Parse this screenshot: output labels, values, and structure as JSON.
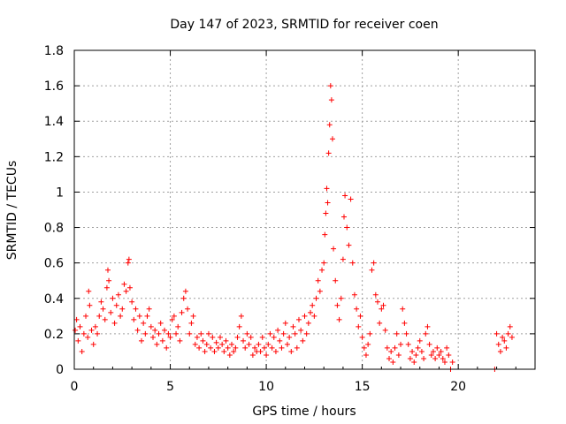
{
  "colors": {
    "series": "#ff0000",
    "background": "#ffffff",
    "grid": "#a0a0a0",
    "axis": "#000000"
  },
  "chart_data": {
    "type": "scatter",
    "title": "Day 147 of 2023, SRMTID for receiver coen",
    "xlabel": "GPS time / hours",
    "ylabel": "SRMTID / TECUs",
    "xlim": [
      0,
      24
    ],
    "ylim": [
      0,
      1.8
    ],
    "xticks": [
      0,
      5,
      10,
      15,
      20
    ],
    "yticks": [
      0,
      0.2,
      0.4,
      0.6,
      0.8,
      1,
      1.2,
      1.4,
      1.6,
      1.8
    ],
    "xtick_labels": [
      "0",
      "5",
      "10",
      "15",
      "20"
    ],
    "ytick_labels": [
      "0",
      "0.2",
      "0.4",
      "0.6",
      "0.8",
      "1",
      "1.2",
      "1.4",
      "1.6",
      "1.8"
    ],
    "grid": true,
    "marker": "+",
    "series": [
      {
        "name": "SRMTID",
        "points": [
          [
            0.05,
            0.22
          ],
          [
            0.12,
            0.28
          ],
          [
            0.2,
            0.16
          ],
          [
            0.3,
            0.24
          ],
          [
            0.4,
            0.1
          ],
          [
            0.5,
            0.2
          ],
          [
            0.6,
            0.3
          ],
          [
            0.7,
            0.18
          ],
          [
            0.75,
            0.44
          ],
          [
            0.8,
            0.36
          ],
          [
            0.9,
            0.22
          ],
          [
            1.0,
            0.14
          ],
          [
            1.1,
            0.24
          ],
          [
            1.2,
            0.2
          ],
          [
            1.3,
            0.3
          ],
          [
            1.4,
            0.38
          ],
          [
            1.5,
            0.34
          ],
          [
            1.6,
            0.28
          ],
          [
            1.7,
            0.46
          ],
          [
            1.75,
            0.56
          ],
          [
            1.8,
            0.5
          ],
          [
            1.9,
            0.32
          ],
          [
            2.0,
            0.4
          ],
          [
            2.1,
            0.26
          ],
          [
            2.2,
            0.36
          ],
          [
            2.3,
            0.42
          ],
          [
            2.4,
            0.3
          ],
          [
            2.5,
            0.34
          ],
          [
            2.6,
            0.48
          ],
          [
            2.7,
            0.44
          ],
          [
            2.8,
            0.6
          ],
          [
            2.85,
            0.62
          ],
          [
            2.9,
            0.46
          ],
          [
            3.0,
            0.38
          ],
          [
            3.1,
            0.28
          ],
          [
            3.2,
            0.34
          ],
          [
            3.3,
            0.22
          ],
          [
            3.4,
            0.3
          ],
          [
            3.5,
            0.16
          ],
          [
            3.6,
            0.26
          ],
          [
            3.7,
            0.2
          ],
          [
            3.8,
            0.3
          ],
          [
            3.9,
            0.34
          ],
          [
            4.0,
            0.24
          ],
          [
            4.1,
            0.18
          ],
          [
            4.2,
            0.22
          ],
          [
            4.3,
            0.14
          ],
          [
            4.4,
            0.2
          ],
          [
            4.5,
            0.26
          ],
          [
            4.6,
            0.16
          ],
          [
            4.7,
            0.22
          ],
          [
            4.8,
            0.12
          ],
          [
            4.9,
            0.2
          ],
          [
            5.0,
            0.18
          ],
          [
            5.1,
            0.28
          ],
          [
            5.2,
            0.3
          ],
          [
            5.3,
            0.2
          ],
          [
            5.4,
            0.24
          ],
          [
            5.5,
            0.16
          ],
          [
            5.6,
            0.32
          ],
          [
            5.7,
            0.4
          ],
          [
            5.8,
            0.44
          ],
          [
            5.9,
            0.34
          ],
          [
            6.0,
            0.2
          ],
          [
            6.1,
            0.26
          ],
          [
            6.2,
            0.3
          ],
          [
            6.3,
            0.14
          ],
          [
            6.4,
            0.18
          ],
          [
            6.5,
            0.12
          ],
          [
            6.6,
            0.2
          ],
          [
            6.7,
            0.16
          ],
          [
            6.8,
            0.1
          ],
          [
            6.9,
            0.14
          ],
          [
            7.0,
            0.2
          ],
          [
            7.1,
            0.12
          ],
          [
            7.2,
            0.18
          ],
          [
            7.3,
            0.1
          ],
          [
            7.4,
            0.15
          ],
          [
            7.5,
            0.12
          ],
          [
            7.6,
            0.18
          ],
          [
            7.7,
            0.14
          ],
          [
            7.8,
            0.1
          ],
          [
            7.9,
            0.16
          ],
          [
            8.0,
            0.12
          ],
          [
            8.1,
            0.08
          ],
          [
            8.2,
            0.14
          ],
          [
            8.3,
            0.1
          ],
          [
            8.4,
            0.12
          ],
          [
            8.5,
            0.18
          ],
          [
            8.6,
            0.24
          ],
          [
            8.7,
            0.3
          ],
          [
            8.8,
            0.16
          ],
          [
            8.9,
            0.12
          ],
          [
            9.0,
            0.2
          ],
          [
            9.1,
            0.14
          ],
          [
            9.2,
            0.18
          ],
          [
            9.3,
            0.08
          ],
          [
            9.4,
            0.12
          ],
          [
            9.5,
            0.1
          ],
          [
            9.6,
            0.14
          ],
          [
            9.7,
            0.1
          ],
          [
            9.8,
            0.18
          ],
          [
            9.9,
            0.12
          ],
          [
            10.0,
            0.08
          ],
          [
            10.1,
            0.14
          ],
          [
            10.2,
            0.2
          ],
          [
            10.3,
            0.12
          ],
          [
            10.4,
            0.18
          ],
          [
            10.5,
            0.1
          ],
          [
            10.6,
            0.22
          ],
          [
            10.7,
            0.16
          ],
          [
            10.8,
            0.12
          ],
          [
            10.9,
            0.2
          ],
          [
            11.0,
            0.26
          ],
          [
            11.1,
            0.14
          ],
          [
            11.2,
            0.18
          ],
          [
            11.3,
            0.1
          ],
          [
            11.4,
            0.24
          ],
          [
            11.5,
            0.2
          ],
          [
            11.6,
            0.12
          ],
          [
            11.7,
            0.28
          ],
          [
            11.8,
            0.22
          ],
          [
            11.9,
            0.16
          ],
          [
            12.0,
            0.3
          ],
          [
            12.1,
            0.2
          ],
          [
            12.2,
            0.26
          ],
          [
            12.3,
            0.32
          ],
          [
            12.4,
            0.36
          ],
          [
            12.5,
            0.3
          ],
          [
            12.6,
            0.4
          ],
          [
            12.7,
            0.5
          ],
          [
            12.8,
            0.44
          ],
          [
            12.9,
            0.56
          ],
          [
            13.0,
            0.6
          ],
          [
            13.05,
            0.76
          ],
          [
            13.1,
            0.88
          ],
          [
            13.15,
            1.02
          ],
          [
            13.2,
            0.94
          ],
          [
            13.25,
            1.22
          ],
          [
            13.3,
            1.38
          ],
          [
            13.35,
            1.6
          ],
          [
            13.4,
            1.52
          ],
          [
            13.45,
            1.3
          ],
          [
            13.5,
            0.68
          ],
          [
            13.6,
            0.5
          ],
          [
            13.7,
            0.36
          ],
          [
            13.8,
            0.28
          ],
          [
            13.9,
            0.4
          ],
          [
            14.0,
            0.62
          ],
          [
            14.05,
            0.86
          ],
          [
            14.1,
            0.98
          ],
          [
            14.2,
            0.8
          ],
          [
            14.3,
            0.7
          ],
          [
            14.4,
            0.96
          ],
          [
            14.5,
            0.6
          ],
          [
            14.6,
            0.42
          ],
          [
            14.7,
            0.34
          ],
          [
            14.8,
            0.24
          ],
          [
            14.9,
            0.3
          ],
          [
            15.0,
            0.18
          ],
          [
            15.1,
            0.12
          ],
          [
            15.2,
            0.08
          ],
          [
            15.3,
            0.14
          ],
          [
            15.4,
            0.2
          ],
          [
            15.5,
            0.56
          ],
          [
            15.6,
            0.6
          ],
          [
            15.7,
            0.42
          ],
          [
            15.8,
            0.38
          ],
          [
            15.9,
            0.26
          ],
          [
            16.0,
            0.34
          ],
          [
            16.1,
            0.36
          ],
          [
            16.2,
            0.22
          ],
          [
            16.3,
            0.12
          ],
          [
            16.4,
            0.06
          ],
          [
            16.5,
            0.1
          ],
          [
            16.6,
            0.04
          ],
          [
            16.7,
            0.12
          ],
          [
            16.8,
            0.2
          ],
          [
            16.9,
            0.08
          ],
          [
            17.0,
            0.14
          ],
          [
            17.1,
            0.34
          ],
          [
            17.2,
            0.26
          ],
          [
            17.3,
            0.2
          ],
          [
            17.4,
            0.14
          ],
          [
            17.5,
            0.06
          ],
          [
            17.6,
            0.1
          ],
          [
            17.7,
            0.04
          ],
          [
            17.8,
            0.08
          ],
          [
            17.9,
            0.12
          ],
          [
            18.0,
            0.16
          ],
          [
            18.1,
            0.1
          ],
          [
            18.2,
            0.06
          ],
          [
            18.3,
            0.2
          ],
          [
            18.4,
            0.24
          ],
          [
            18.5,
            0.14
          ],
          [
            18.6,
            0.08
          ],
          [
            18.7,
            0.1
          ],
          [
            18.8,
            0.06
          ],
          [
            18.9,
            0.12
          ],
          [
            19.0,
            0.08
          ],
          [
            19.1,
            0.1
          ],
          [
            19.2,
            0.06
          ],
          [
            19.3,
            0.04
          ],
          [
            19.4,
            0.12
          ],
          [
            19.5,
            0.08
          ],
          [
            19.6,
            0.0
          ],
          [
            19.7,
            0.04
          ],
          [
            21.9,
            0.0
          ],
          [
            22.0,
            0.2
          ],
          [
            22.1,
            0.14
          ],
          [
            22.2,
            0.1
          ],
          [
            22.3,
            0.18
          ],
          [
            22.4,
            0.16
          ],
          [
            22.5,
            0.12
          ],
          [
            22.6,
            0.2
          ],
          [
            22.7,
            0.24
          ],
          [
            22.8,
            0.18
          ]
        ]
      }
    ]
  }
}
